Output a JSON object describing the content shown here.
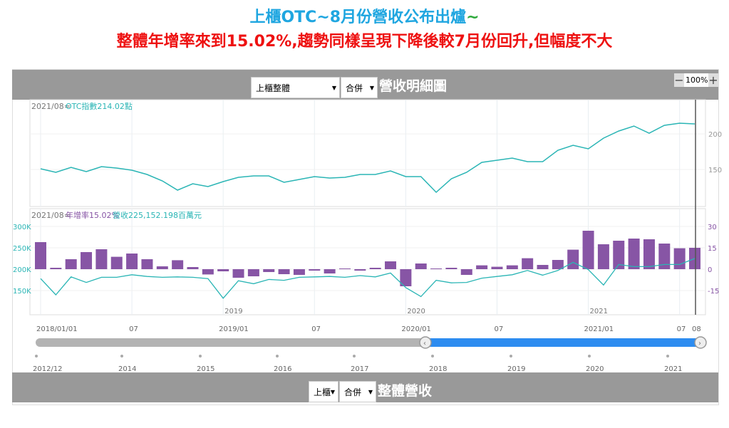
{
  "title": {
    "line1": "上櫃OTC~8月份營收公布出爐",
    "line1_tail": "~",
    "line2": "整體年增率來到15.02%,趨勢同樣呈現下降後較7月份回升,但幅度不大"
  },
  "header": {
    "market_select": "上櫃整體",
    "consolidate_select": "合併",
    "title": "營收明細圖",
    "zoom_minus": "−",
    "zoom_value": "100%",
    "zoom_plus": "+"
  },
  "top_chart": {
    "legend_date": "2021/08=",
    "legend_value": "OTC指數214.02點"
  },
  "bottom_chart": {
    "legend_date": "2021/08=",
    "legend_yoy": "年增率15.02%",
    "legend_rev": "營收225,152.198百萬元"
  },
  "footer": {
    "market_select": "上櫃",
    "consolidate_select": "合併",
    "title": "整體營收"
  },
  "slider": {
    "range_start": "2018/01",
    "range_end": "2021/08",
    "years": [
      "2012/12",
      "2014",
      "2015",
      "2016",
      "2017",
      "2018",
      "2019",
      "2020",
      "2021"
    ]
  },
  "colors": {
    "otc": "#2ab5b5",
    "bar": "#8755a5",
    "slider": "#2d8cf0"
  },
  "chart_data": [
    {
      "type": "line",
      "title": "OTC指數",
      "x_start": "2018/01",
      "x_end": "2021/08",
      "ylim": [
        110,
        225
      ],
      "yticks": [
        "150",
        "200"
      ],
      "ytick_values": [
        150,
        200
      ],
      "values": [
        151,
        146,
        153,
        147,
        154,
        152,
        149,
        143,
        134,
        121,
        130,
        126,
        133,
        139,
        141,
        141,
        132,
        136,
        140,
        138,
        139,
        143,
        143,
        148,
        140,
        140,
        118,
        137,
        146,
        160,
        163,
        166,
        161,
        161,
        177,
        184,
        179,
        194,
        204,
        211,
        201,
        212,
        215,
        214
      ]
    },
    {
      "type": "bar",
      "title": "年增率 / 營收",
      "x_start": "2018/01",
      "x_end": "2021/08",
      "left_axis": {
        "label": "營收",
        "ticks": [
          "300K",
          "250K",
          "200K",
          "150K"
        ],
        "tick_values": [
          300,
          250,
          200,
          150
        ],
        "ylim": [
          100,
          340
        ]
      },
      "right_axis": {
        "label": "年增率",
        "ticks": [
          "30",
          "15",
          "0",
          "-15"
        ],
        "tick_values": [
          30,
          15,
          0,
          -15
        ]
      },
      "year_labels": [
        "2019",
        "2020",
        "2021"
      ],
      "xticks": [
        "2018/01/01",
        "07",
        "2019/01",
        "07",
        "2020/01",
        "07",
        "2021/01",
        "07",
        "08"
      ],
      "series": [
        {
          "name": "年增率(%)",
          "type": "bar",
          "values": [
            19,
            1,
            7,
            12,
            14,
            8.7,
            11,
            7,
            2,
            6.3,
            1.5,
            -3.7,
            -1.5,
            -6,
            -5,
            -2,
            -3.5,
            -4,
            -1,
            -3,
            0.5,
            -1,
            1,
            5.5,
            -12,
            4,
            0.5,
            1,
            -4,
            2.7,
            1.7,
            2.7,
            7.7,
            3,
            6.5,
            13.7,
            27,
            17.5,
            20,
            21.5,
            21,
            18,
            14.7,
            15.02
          ]
        },
        {
          "name": "營收(K百萬元)",
          "type": "line",
          "values": [
            178,
            140,
            182,
            169,
            181,
            181,
            187,
            183,
            181,
            182,
            181,
            178,
            132,
            173,
            166,
            176,
            174,
            181,
            182,
            183,
            181,
            185,
            182,
            191,
            157,
            136,
            174,
            168,
            169,
            179,
            183,
            187,
            197,
            186,
            197,
            216,
            199,
            163,
            211,
            206,
            206,
            211,
            211,
            225
          ]
        }
      ]
    }
  ]
}
